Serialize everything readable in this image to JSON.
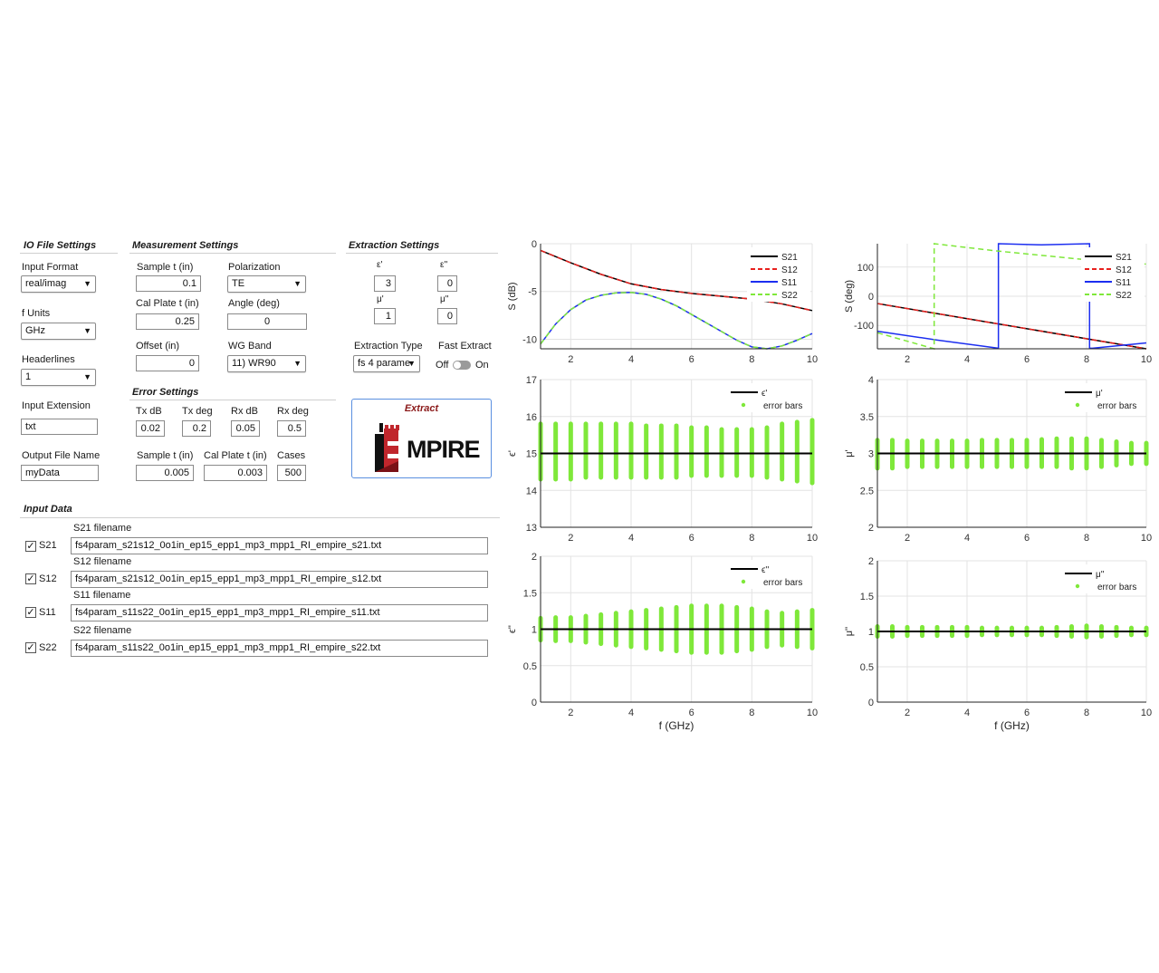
{
  "io": {
    "title": "IO File Settings",
    "input_format_label": "Input Format",
    "input_format_value": "real/imag",
    "f_units_label": "f Units",
    "f_units_value": "GHz",
    "headerlines_label": "Headerlines",
    "headerlines_value": "1",
    "input_ext_label": "Input Extension",
    "input_ext_value": "txt",
    "output_name_label": "Output File Name",
    "output_name_value": "myData"
  },
  "meas": {
    "title": "Measurement Settings",
    "sample_t_label": "Sample t (in)",
    "sample_t_value": "0.1",
    "polarization_label": "Polarization",
    "polarization_value": "TE",
    "cal_plate_label": "Cal Plate t (in)",
    "cal_plate_value": "0.25",
    "angle_label": "Angle (deg)",
    "angle_value": "0",
    "offset_label": "Offset (in)",
    "offset_value": "0",
    "wg_band_label": "WG Band",
    "wg_band_value": "11) WR90"
  },
  "err": {
    "title": "Error Settings",
    "tx_db_label": "Tx dB",
    "tx_db_value": "0.02",
    "tx_deg_label": "Tx deg",
    "tx_deg_value": "0.2",
    "rx_db_label": "Rx dB",
    "rx_db_value": "0.05",
    "rx_deg_label": "Rx deg",
    "rx_deg_value": "0.5",
    "sample_t_label": "Sample t (in)",
    "sample_t_value": "0.005",
    "cal_plate_label": "Cal Plate t (in)",
    "cal_plate_value": "0.003",
    "cases_label": "Cases",
    "cases_value": "500"
  },
  "ext": {
    "title": "Extraction Settings",
    "eps_r_label": "ε'",
    "eps_r_value": "3",
    "eps_i_label": "ε''",
    "eps_i_value": "0",
    "mu_r_label": "μ'",
    "mu_r_value": "1",
    "mu_i_label": "μ''",
    "mu_i_value": "0",
    "type_label": "Extraction Type",
    "type_value": "fs 4 parame",
    "fast_label": "Fast Extract",
    "fast_off": "Off",
    "fast_on": "On",
    "extract_label": "Extract",
    "logo_text": "MPIRE"
  },
  "input_data": {
    "title": "Input Data",
    "rows": [
      {
        "check": "S21",
        "label": "S21 filename",
        "file": "fs4param_s21s12_0o1in_ep15_epp1_mp3_mpp1_RI_empire_s21.txt"
      },
      {
        "check": "S12",
        "label": "S12 filename",
        "file": "fs4param_s21s12_0o1in_ep15_epp1_mp3_mpp1_RI_empire_s12.txt"
      },
      {
        "check": "S11",
        "label": "S11 filename",
        "file": "fs4param_s11s22_0o1in_ep15_epp1_mp3_mpp1_RI_empire_s11.txt"
      },
      {
        "check": "S22",
        "label": "S22 filename",
        "file": "fs4param_s11s22_0o1in_ep15_epp1_mp3_mpp1_RI_empire_s22.txt"
      }
    ]
  },
  "chart_data": [
    {
      "type": "line",
      "ylabel": "S (dB)",
      "xlabel": "",
      "xlim": [
        1,
        10
      ],
      "ylim": [
        -11,
        0
      ],
      "xticks": [
        2,
        4,
        6,
        8,
        10
      ],
      "yticks": [
        0,
        -5,
        -10
      ],
      "legend": "top-right",
      "grid": true,
      "series": [
        {
          "name": "S21",
          "color": "#000000",
          "dash": "",
          "x": [
            1,
            2,
            3,
            4,
            5,
            6,
            7,
            8,
            9,
            10
          ],
          "y": [
            -0.7,
            -2.0,
            -3.2,
            -4.2,
            -4.8,
            -5.2,
            -5.5,
            -5.8,
            -6.3,
            -7.0
          ]
        },
        {
          "name": "S12",
          "color": "#e8211e",
          "dash": "6,4",
          "x": [
            1,
            2,
            3,
            4,
            5,
            6,
            7,
            8,
            9,
            10
          ],
          "y": [
            -0.7,
            -2.0,
            -3.2,
            -4.2,
            -4.8,
            -5.2,
            -5.5,
            -5.8,
            -6.3,
            -7.0
          ]
        },
        {
          "name": "S11",
          "color": "#1c2ef0",
          "dash": "",
          "x": [
            1,
            1.5,
            2,
            2.5,
            3,
            3.5,
            4,
            4.5,
            5,
            5.5,
            6,
            6.5,
            7,
            7.5,
            8,
            8.5,
            9,
            9.5,
            10
          ],
          "y": [
            -10.5,
            -8.4,
            -6.9,
            -5.9,
            -5.4,
            -5.15,
            -5.1,
            -5.3,
            -5.8,
            -6.5,
            -7.4,
            -8.3,
            -9.2,
            -10.1,
            -10.8,
            -11.0,
            -10.7,
            -10.1,
            -9.4
          ]
        },
        {
          "name": "S22",
          "color": "#7fe83a",
          "dash": "6,4",
          "x": [
            1,
            1.5,
            2,
            2.5,
            3,
            3.5,
            4,
            4.5,
            5,
            5.5,
            6,
            6.5,
            7,
            7.5,
            8,
            8.5,
            9,
            9.5,
            10
          ],
          "y": [
            -10.5,
            -8.4,
            -6.9,
            -5.9,
            -5.4,
            -5.15,
            -5.1,
            -5.3,
            -5.8,
            -6.5,
            -7.4,
            -8.3,
            -9.2,
            -10.1,
            -10.8,
            -11.0,
            -10.7,
            -10.1,
            -9.4
          ]
        }
      ]
    },
    {
      "type": "line",
      "ylabel": "S (deg)",
      "xlabel": "",
      "xlim": [
        1,
        10
      ],
      "ylim": [
        -180,
        180
      ],
      "xticks": [
        2,
        4,
        6,
        8,
        10
      ],
      "yticks": [
        100,
        0,
        -100
      ],
      "legend": "top-right",
      "grid": true,
      "series": [
        {
          "name": "S21",
          "color": "#000000",
          "dash": "",
          "x": [
            1,
            10
          ],
          "y": [
            -25,
            -180
          ]
        },
        {
          "name": "S12",
          "color": "#e8211e",
          "dash": "6,4",
          "x": [
            1,
            10
          ],
          "y": [
            -25,
            -180
          ]
        },
        {
          "name": "S11",
          "color": "#1c2ef0",
          "dash": "",
          "x": [
            1,
            3,
            5.05,
            5.05,
            6.5,
            8.1,
            8.1,
            8.2,
            10
          ],
          "y": [
            -120,
            -150,
            -178,
            180,
            176,
            180,
            -178,
            -178,
            -160
          ]
        },
        {
          "name": "S22",
          "color": "#7fe83a",
          "dash": "6,4",
          "x": [
            1,
            2.9,
            2.9,
            5,
            7,
            8.5,
            10
          ],
          "y": [
            -125,
            -180,
            180,
            155,
            135,
            120,
            110
          ]
        }
      ]
    },
    {
      "type": "scatter",
      "ylabel": "ϵ'",
      "xlabel": "",
      "xlim": [
        1,
        10
      ],
      "ylim": [
        13,
        17
      ],
      "xticks": [
        2,
        4,
        6,
        8,
        10
      ],
      "yticks": [
        13,
        14,
        15,
        16,
        17
      ],
      "legend": "top-right",
      "grid": true,
      "series": [
        {
          "name": "ϵ'",
          "color": "#000000",
          "x": [
            1,
            10
          ],
          "y": [
            15,
            15
          ]
        },
        {
          "name": "error bars",
          "color": "#7fe83a",
          "x": [
            1,
            1.5,
            2,
            2.5,
            3,
            3.5,
            4,
            4.5,
            5,
            5.5,
            6,
            6.5,
            7,
            7.5,
            8,
            8.5,
            9,
            9.5,
            10
          ],
          "low": [
            14.3,
            14.3,
            14.3,
            14.35,
            14.35,
            14.35,
            14.35,
            14.35,
            14.35,
            14.35,
            14.4,
            14.4,
            14.4,
            14.4,
            14.4,
            14.35,
            14.3,
            14.25,
            14.2
          ],
          "high": [
            15.8,
            15.8,
            15.8,
            15.8,
            15.8,
            15.8,
            15.8,
            15.75,
            15.75,
            15.75,
            15.7,
            15.7,
            15.65,
            15.65,
            15.65,
            15.7,
            15.8,
            15.85,
            15.9
          ]
        }
      ]
    },
    {
      "type": "scatter",
      "ylabel": "μ'",
      "xlabel": "",
      "xlim": [
        1,
        10
      ],
      "ylim": [
        2,
        4
      ],
      "xticks": [
        2,
        4,
        6,
        8,
        10
      ],
      "yticks": [
        2,
        2.5,
        3,
        3.5,
        4
      ],
      "legend": "top-right",
      "grid": true,
      "series": [
        {
          "name": "μ'",
          "color": "#000000",
          "x": [
            1,
            10
          ],
          "y": [
            3,
            3
          ]
        },
        {
          "name": "error bars",
          "color": "#7fe83a",
          "x": [
            1,
            1.5,
            2,
            2.5,
            3,
            3.5,
            4,
            4.5,
            5,
            5.5,
            6,
            6.5,
            7,
            7.5,
            8,
            8.5,
            9,
            9.5,
            10
          ],
          "low": [
            2.8,
            2.8,
            2.82,
            2.82,
            2.82,
            2.82,
            2.82,
            2.82,
            2.82,
            2.82,
            2.82,
            2.82,
            2.82,
            2.8,
            2.8,
            2.82,
            2.84,
            2.86,
            2.86
          ],
          "high": [
            3.18,
            3.18,
            3.17,
            3.17,
            3.17,
            3.17,
            3.17,
            3.18,
            3.18,
            3.18,
            3.18,
            3.19,
            3.2,
            3.2,
            3.2,
            3.18,
            3.16,
            3.14,
            3.14
          ]
        }
      ]
    },
    {
      "type": "scatter",
      "ylabel": "ϵ''",
      "xlabel": "f (GHz)",
      "xlim": [
        1,
        10
      ],
      "ylim": [
        0,
        2
      ],
      "xticks": [
        2,
        4,
        6,
        8,
        10
      ],
      "yticks": [
        0,
        0.5,
        1,
        1.5,
        2
      ],
      "legend": "top-right",
      "grid": true,
      "series": [
        {
          "name": "ϵ''",
          "color": "#000000",
          "x": [
            1,
            10
          ],
          "y": [
            1,
            1
          ]
        },
        {
          "name": "error bars",
          "color": "#7fe83a",
          "x": [
            1,
            1.5,
            2,
            2.5,
            3,
            3.5,
            4,
            4.5,
            5,
            5.5,
            6,
            6.5,
            7,
            7.5,
            8,
            8.5,
            9,
            9.5,
            10
          ],
          "low": [
            0.85,
            0.84,
            0.84,
            0.82,
            0.8,
            0.78,
            0.76,
            0.74,
            0.72,
            0.7,
            0.68,
            0.68,
            0.68,
            0.7,
            0.72,
            0.76,
            0.78,
            0.76,
            0.74
          ],
          "high": [
            1.15,
            1.16,
            1.16,
            1.18,
            1.2,
            1.22,
            1.24,
            1.26,
            1.28,
            1.3,
            1.32,
            1.32,
            1.32,
            1.3,
            1.28,
            1.24,
            1.22,
            1.24,
            1.26
          ]
        }
      ]
    },
    {
      "type": "scatter",
      "ylabel": "μ''",
      "xlabel": "f (GHz)",
      "xlim": [
        1,
        10
      ],
      "ylim": [
        0,
        2
      ],
      "xticks": [
        2,
        4,
        6,
        8,
        10
      ],
      "yticks": [
        0,
        0.5,
        1,
        1.5,
        2
      ],
      "legend": "top-right",
      "grid": true,
      "series": [
        {
          "name": "μ''",
          "color": "#000000",
          "x": [
            1,
            10
          ],
          "y": [
            1,
            1
          ]
        },
        {
          "name": "error bars",
          "color": "#7fe83a",
          "x": [
            1,
            1.5,
            2,
            2.5,
            3,
            3.5,
            4,
            4.5,
            5,
            5.5,
            6,
            6.5,
            7,
            7.5,
            8,
            8.5,
            9,
            9.5,
            10
          ],
          "low": [
            0.93,
            0.93,
            0.94,
            0.94,
            0.94,
            0.94,
            0.94,
            0.95,
            0.95,
            0.95,
            0.95,
            0.95,
            0.94,
            0.93,
            0.92,
            0.93,
            0.94,
            0.95,
            0.95
          ],
          "high": [
            1.07,
            1.07,
            1.06,
            1.06,
            1.06,
            1.06,
            1.06,
            1.05,
            1.05,
            1.05,
            1.05,
            1.05,
            1.06,
            1.07,
            1.08,
            1.07,
            1.06,
            1.05,
            1.05
          ]
        }
      ]
    }
  ]
}
